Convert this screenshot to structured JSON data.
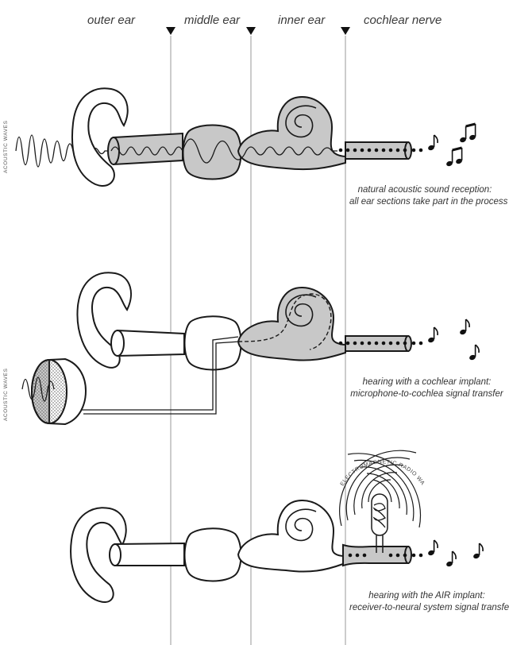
{
  "headers": {
    "outer": "outer ear",
    "middle": "middle ear",
    "inner": "inner ear",
    "nerve": "cochlear nerve"
  },
  "side_labels": {
    "top": "ACOUSTIC WAVES",
    "middle": "ACOUSTIC WAVES"
  },
  "radio_label": "ELECTROMAGNETIC RADIO WAVES",
  "captions": {
    "natural": {
      "line1": "natural acoustic sound reception:",
      "line2": "all ear sections take part in the process"
    },
    "cochlear": {
      "line1": "hearing with a cochlear implant:",
      "line2": "microphone-to-cochlea signal transfer"
    },
    "air": {
      "line1": "hearing with the AIR implant:",
      "line2": "receiver-to-neural system signal transfer"
    }
  },
  "colors": {
    "line": "#1a1a1a",
    "fill_gray": "#c8c8c8",
    "divider": "#9a9a9a"
  }
}
